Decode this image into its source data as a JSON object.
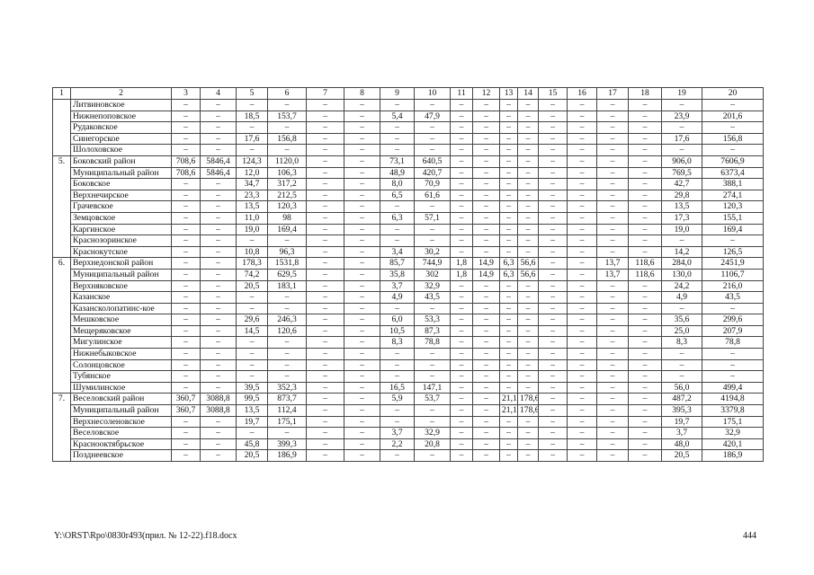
{
  "table": {
    "header": [
      "1",
      "2",
      "3",
      "4",
      "5",
      "6",
      "7",
      "8",
      "9",
      "10",
      "11",
      "12",
      "13",
      "14",
      "15",
      "16",
      "17",
      "18",
      "19",
      "20"
    ],
    "rows": [
      {
        "num": "",
        "name": "Литвиновское",
        "values": [
          "–",
          "–",
          "–",
          "–",
          "–",
          "–",
          "–",
          "–",
          "–",
          "–",
          "–",
          "–",
          "–",
          "–",
          "–",
          "–",
          "–",
          "–"
        ]
      },
      {
        "num": "",
        "name": "Нижнепоповское",
        "values": [
          "–",
          "–",
          "18,5",
          "153,7",
          "–",
          "–",
          "5,4",
          "47,9",
          "–",
          "–",
          "–",
          "–",
          "–",
          "–",
          "–",
          "–",
          "23,9",
          "201,6"
        ]
      },
      {
        "num": "",
        "name": "Рудаковское",
        "values": [
          "–",
          "–",
          "–",
          "–",
          "–",
          "–",
          "–",
          "–",
          "–",
          "–",
          "–",
          "–",
          "–",
          "–",
          "–",
          "–",
          "–",
          "–"
        ]
      },
      {
        "num": "",
        "name": "Синегорское",
        "values": [
          "–",
          "–",
          "17,6",
          "156,8",
          "–",
          "–",
          "–",
          "–",
          "–",
          "–",
          "–",
          "–",
          "–",
          "–",
          "–",
          "–",
          "17,6",
          "156,8"
        ]
      },
      {
        "num": "",
        "name": "Шолоховское",
        "values": [
          "–",
          "–",
          "–",
          "–",
          "–",
          "–",
          "–",
          "–",
          "–",
          "–",
          "–",
          "–",
          "–",
          "–",
          "–",
          "–",
          "–",
          "–"
        ]
      },
      {
        "num": "5.",
        "name": "Боковский район",
        "values": [
          "708,6",
          "5846,4",
          "124,3",
          "1120,0",
          "–",
          "–",
          "73,1",
          "640,5",
          "–",
          "–",
          "–",
          "–",
          "–",
          "–",
          "–",
          "–",
          "906,0",
          "7606,9"
        ]
      },
      {
        "num": "",
        "name": "Муниципальный район",
        "values": [
          "708,6",
          "5846,4",
          "12,0",
          "106,3",
          "–",
          "–",
          "48,9",
          "420,7",
          "–",
          "–",
          "–",
          "–",
          "–",
          "–",
          "–",
          "–",
          "769,5",
          "6373,4"
        ]
      },
      {
        "num": "",
        "name": "Боковское",
        "values": [
          "–",
          "–",
          "34,7",
          "317,2",
          "–",
          "–",
          "8,0",
          "70,9",
          "–",
          "–",
          "–",
          "–",
          "–",
          "–",
          "–",
          "–",
          "42,7",
          "388,1"
        ]
      },
      {
        "num": "",
        "name": "Верхнечирское",
        "values": [
          "–",
          "–",
          "23,3",
          "212,5",
          "–",
          "–",
          "6,5",
          "61,6",
          "–",
          "–",
          "–",
          "–",
          "–",
          "–",
          "–",
          "–",
          "29,8",
          "274,1"
        ]
      },
      {
        "num": "",
        "name": "Грачевское",
        "values": [
          "–",
          "–",
          "13,5",
          "120,3",
          "–",
          "–",
          "–",
          "–",
          "–",
          "–",
          "–",
          "–",
          "–",
          "–",
          "–",
          "–",
          "13,5",
          "120,3"
        ]
      },
      {
        "num": "",
        "name": "Земцовское",
        "values": [
          "–",
          "–",
          "11,0",
          "98",
          "–",
          "–",
          "6,3",
          "57,1",
          "–",
          "–",
          "–",
          "–",
          "–",
          "–",
          "–",
          "–",
          "17,3",
          "155,1"
        ]
      },
      {
        "num": "",
        "name": "Каргинское",
        "values": [
          "–",
          "–",
          "19,0",
          "169,4",
          "–",
          "–",
          "–",
          "–",
          "–",
          "–",
          "–",
          "–",
          "–",
          "–",
          "–",
          "–",
          "19,0",
          "169,4"
        ]
      },
      {
        "num": "",
        "name": "Краснозоринское",
        "values": [
          "–",
          "–",
          "–",
          "–",
          "–",
          "–",
          "–",
          "–",
          "–",
          "–",
          "–",
          "–",
          "–",
          "–",
          "–",
          "–",
          "–",
          "–"
        ]
      },
      {
        "num": "",
        "name": "Краснокутское",
        "values": [
          "–",
          "–",
          "10,8",
          "96,3",
          "–",
          "–",
          "3,4",
          "30,2",
          "–",
          "–",
          "–",
          "–",
          "–",
          "–",
          "–",
          "–",
          "14,2",
          "126,5"
        ]
      },
      {
        "num": "6.",
        "name": "Верхнедонской район",
        "values": [
          "–",
          "–",
          "178,3",
          "1531,8",
          "–",
          "–",
          "85,7",
          "744,9",
          "1,8",
          "14,9",
          "6,3",
          "56,6",
          "–",
          "–",
          "13,7",
          "118,6",
          "284,0",
          "2451,9"
        ]
      },
      {
        "num": "",
        "name": "Муниципальный район",
        "values": [
          "–",
          "–",
          "74,2",
          "629,5",
          "–",
          "–",
          "35,8",
          "302",
          "1,8",
          "14,9",
          "6,3",
          "56,6",
          "–",
          "–",
          "13,7",
          "118,6",
          "130,0",
          "1106,7"
        ]
      },
      {
        "num": "",
        "name": "Верхняковское",
        "values": [
          "–",
          "–",
          "20,5",
          "183,1",
          "–",
          "–",
          "3,7",
          "32,9",
          "–",
          "–",
          "–",
          "–",
          "–",
          "–",
          "–",
          "–",
          "24,2",
          "216,0"
        ]
      },
      {
        "num": "",
        "name": "Казанское",
        "values": [
          "–",
          "–",
          "–",
          "–",
          "–",
          "–",
          "4,9",
          "43,5",
          "–",
          "–",
          "–",
          "–",
          "–",
          "–",
          "–",
          "–",
          "4,9",
          "43,5"
        ]
      },
      {
        "num": "",
        "name": "Казансколопатинс-кое",
        "values": [
          "–",
          "–",
          "–",
          "–",
          "–",
          "–",
          "–",
          "–",
          "–",
          "–",
          "–",
          "–",
          "–",
          "–",
          "–",
          "–",
          "–",
          "–"
        ]
      },
      {
        "num": "",
        "name": "Мешковское",
        "values": [
          "–",
          "–",
          "29,6",
          "246,3",
          "–",
          "–",
          "6,0",
          "53,3",
          "–",
          "–",
          "–",
          "–",
          "–",
          "–",
          "–",
          "–",
          "35,6",
          "299,6"
        ]
      },
      {
        "num": "",
        "name": "Мещеряковское",
        "values": [
          "–",
          "–",
          "14,5",
          "120,6",
          "–",
          "–",
          "10,5",
          "87,3",
          "–",
          "–",
          "–",
          "–",
          "–",
          "–",
          "–",
          "–",
          "25,0",
          "207,9"
        ]
      },
      {
        "num": "",
        "name": "Мигулинское",
        "values": [
          "–",
          "–",
          "–",
          "–",
          "–",
          "–",
          "8,3",
          "78,8",
          "–",
          "–",
          "–",
          "–",
          "–",
          "–",
          "–",
          "–",
          "8,3",
          "78,8"
        ]
      },
      {
        "num": "",
        "name": "Нижнебыковское",
        "values": [
          "–",
          "–",
          "–",
          "–",
          "–",
          "–",
          "–",
          "–",
          "–",
          "–",
          "–",
          "–",
          "–",
          "–",
          "–",
          "–",
          "–",
          "–"
        ]
      },
      {
        "num": "",
        "name": "Солонцовское",
        "values": [
          "–",
          "–",
          "–",
          "–",
          "–",
          "–",
          "–",
          "–",
          "–",
          "–",
          "–",
          "–",
          "–",
          "–",
          "–",
          "–",
          "–",
          "–"
        ]
      },
      {
        "num": "",
        "name": "Тубянское",
        "values": [
          "–",
          "–",
          "–",
          "–",
          "–",
          "–",
          "–",
          "–",
          "–",
          "–",
          "–",
          "–",
          "–",
          "–",
          "–",
          "–",
          "–",
          "–"
        ]
      },
      {
        "num": "",
        "name": "Шумилинское",
        "values": [
          "–",
          "–",
          "39,5",
          "352,3",
          "–",
          "–",
          "16,5",
          "147,1",
          "–",
          "–",
          "–",
          "–",
          "–",
          "–",
          "–",
          "–",
          "56,0",
          "499,4"
        ]
      },
      {
        "num": "7.",
        "name": "Веселовский район",
        "values": [
          "360,7",
          "3088,8",
          "99,5",
          "873,7",
          "–",
          "–",
          "5,9",
          "53,7",
          "–",
          "–",
          "21,1",
          "178,6",
          "–",
          "–",
          "–",
          "–",
          "487,2",
          "4194,8"
        ]
      },
      {
        "num": "",
        "name": "Муниципальный район",
        "values": [
          "360,7",
          "3088,8",
          "13,5",
          "112,4",
          "–",
          "–",
          "–",
          "–",
          "–",
          "–",
          "21,1",
          "178,6",
          "–",
          "–",
          "–",
          "–",
          "395,3",
          "3379,8"
        ]
      },
      {
        "num": "",
        "name": "Верхнесоленовское",
        "values": [
          "–",
          "–",
          "19,7",
          "175,1",
          "–",
          "–",
          "–",
          "–",
          "–",
          "–",
          "–",
          "–",
          "–",
          "–",
          "–",
          "–",
          "19,7",
          "175,1"
        ]
      },
      {
        "num": "",
        "name": "Веселовское",
        "values": [
          "–",
          "–",
          "–",
          "–",
          "–",
          "–",
          "3,7",
          "32,9",
          "–",
          "–",
          "–",
          "–",
          "–",
          "–",
          "–",
          "–",
          "3,7",
          "32,9"
        ]
      },
      {
        "num": "",
        "name": "Краснооктябрьское",
        "values": [
          "–",
          "–",
          "45,8",
          "399,3",
          "–",
          "–",
          "2,2",
          "20,8",
          "–",
          "–",
          "–",
          "–",
          "–",
          "–",
          "–",
          "–",
          "48,0",
          "420,1"
        ]
      },
      {
        "num": "",
        "name": "Позднеевское",
        "values": [
          "–",
          "–",
          "20,5",
          "186,9",
          "–",
          "–",
          "–",
          "–",
          "–",
          "–",
          "–",
          "–",
          "–",
          "–",
          "–",
          "–",
          "20,5",
          "186,9"
        ]
      }
    ]
  },
  "footer": {
    "path": "Y:\\ORST\\Rpo\\0830r493(прил. № 12-22).f18.docx",
    "page": "444"
  }
}
